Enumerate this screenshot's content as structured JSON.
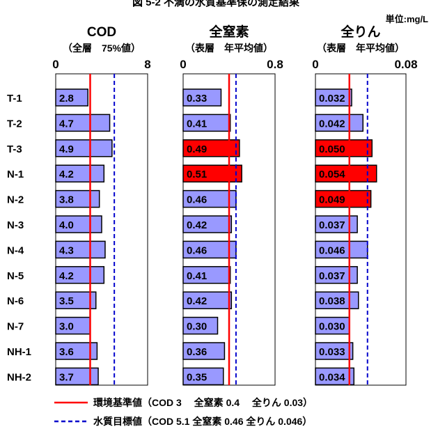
{
  "header": {
    "title": "図 5-2 不満の水質基準保の測定結果",
    "unit": "単位:mg/L"
  },
  "row_labels": [
    "T-1",
    "T-2",
    "T-3",
    "N-1",
    "N-2",
    "N-3",
    "N-4",
    "N-5",
    "N-6",
    "N-7",
    "NH-1",
    "NH-2"
  ],
  "legend": {
    "standard": "環境基準値（COD 3　 全窒素 0.4 　全りん 0.03）",
    "target": "水質目標値（COD 5.1  全窒素 0.46  全りん 0.046）"
  },
  "colors": {
    "bar_normal": "#9999ff",
    "bar_exceed": "#ff0000",
    "standard_line": "#ff0000",
    "target_line": "#0000cc"
  },
  "chart_data": [
    {
      "type": "bar",
      "orientation": "horizontal",
      "title": "COD",
      "subtitle": "（全層　75%値）",
      "xlim": [
        0,
        8
      ],
      "tick_labels": [
        "0",
        "8"
      ],
      "value_labels": [
        "2.8",
        "4.7",
        "4.9",
        "4.2",
        "3.8",
        "4.0",
        "4.3",
        "4.2",
        "3.5",
        "3.0",
        "3.6",
        "3.7"
      ],
      "values": [
        2.8,
        4.7,
        4.9,
        4.2,
        3.8,
        4.0,
        4.3,
        4.2,
        3.5,
        3.0,
        3.6,
        3.7
      ],
      "exceed": [
        false,
        false,
        false,
        false,
        false,
        false,
        false,
        false,
        false,
        false,
        false,
        false
      ],
      "standard": 3,
      "target": 5.1
    },
    {
      "type": "bar",
      "orientation": "horizontal",
      "title": "全窒素",
      "subtitle": "（表層　年平均値）",
      "xlim": [
        0,
        0.8
      ],
      "tick_labels": [
        "0",
        "0.8"
      ],
      "value_labels": [
        "0.33",
        "0.41",
        "0.49",
        "0.51",
        "0.46",
        "0.42",
        "0.46",
        "0.41",
        "0.42",
        "0.30",
        "0.36",
        "0.35"
      ],
      "values": [
        0.33,
        0.41,
        0.49,
        0.51,
        0.46,
        0.42,
        0.46,
        0.41,
        0.42,
        0.3,
        0.36,
        0.35
      ],
      "exceed": [
        false,
        false,
        true,
        true,
        false,
        false,
        false,
        false,
        false,
        false,
        false,
        false
      ],
      "standard": 0.4,
      "target": 0.46
    },
    {
      "type": "bar",
      "orientation": "horizontal",
      "title": "全りん",
      "subtitle": "（表層　年平均値）",
      "xlim": [
        0,
        0.08
      ],
      "tick_labels": [
        "0",
        "0.08"
      ],
      "value_labels": [
        "0.032",
        "0.042",
        "0.050",
        "0.054",
        "0.049",
        "0.037",
        "0.046",
        "0.037",
        "0.038",
        "0.030",
        "0.033",
        "0.034"
      ],
      "values": [
        0.032,
        0.042,
        0.05,
        0.054,
        0.049,
        0.037,
        0.046,
        0.037,
        0.038,
        0.03,
        0.033,
        0.034
      ],
      "exceed": [
        false,
        false,
        true,
        true,
        true,
        false,
        false,
        false,
        false,
        false,
        false,
        false
      ],
      "standard": 0.03,
      "target": 0.046
    }
  ]
}
